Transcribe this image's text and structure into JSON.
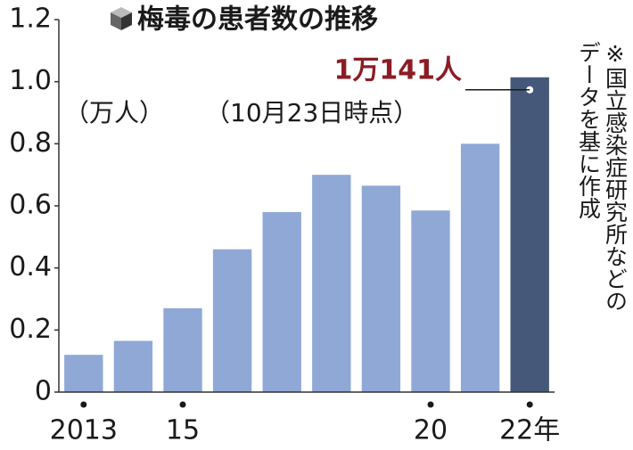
{
  "chart_data": {
    "type": "bar",
    "title": "梅毒の患者数の推移",
    "y_unit": "（万人）",
    "note": "（10月23日時点）",
    "source": [
      "※国立感染症研究所などの",
      "データを基に作成"
    ],
    "categories": [
      "2013",
      null,
      "15",
      null,
      null,
      null,
      null,
      "20",
      null,
      "22年"
    ],
    "values": [
      0.12,
      0.165,
      0.27,
      0.46,
      0.58,
      0.7,
      0.665,
      0.585,
      0.8,
      1.0141
    ],
    "value_labels": [
      null,
      null,
      null,
      null,
      null,
      null,
      null,
      null,
      null,
      "1万141人"
    ],
    "colors": [
      "#8fa8d6",
      "#8fa8d6",
      "#8fa8d6",
      "#8fa8d6",
      "#8fa8d6",
      "#8fa8d6",
      "#8fa8d6",
      "#8fa8d6",
      "#8fa8d6",
      "#45587a"
    ],
    "ylim": [
      0,
      1.2
    ],
    "yticks": [
      0,
      0.2,
      0.4,
      0.6,
      0.8,
      {
        "value": 1.0,
        "label": "1.0"
      },
      1.2
    ],
    "grid": false
  }
}
